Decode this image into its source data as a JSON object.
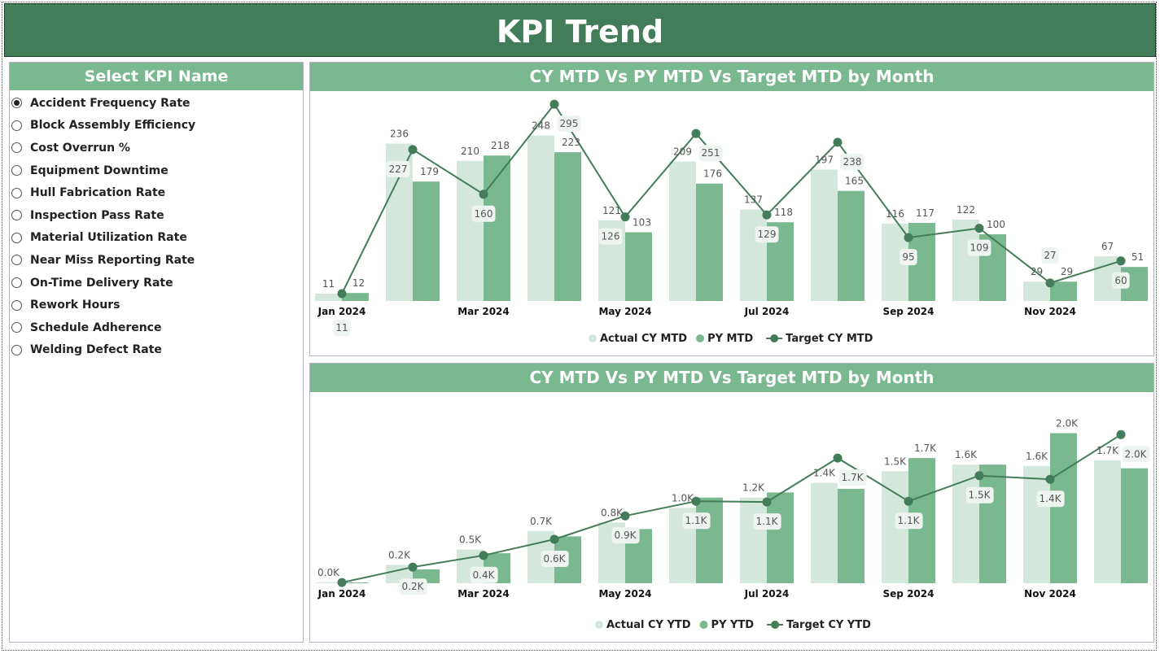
{
  "header": {
    "title": "KPI Trend"
  },
  "sidebar": {
    "title": "Select KPI Name",
    "selected": "Accident Frequency Rate",
    "items": [
      "Accident Frequency Rate",
      "Block Assembly Efficiency",
      "Cost Overrun %",
      "Equipment Downtime",
      "Hull Fabrication Rate",
      "Inspection Pass Rate",
      "Material Utilization Rate",
      "Near Miss Reporting Rate",
      "On-Time Delivery Rate",
      "Rework Hours",
      "Schedule Adherence",
      "Welding Defect Rate"
    ]
  },
  "colors": {
    "header": "#437c58",
    "panel_head": "#7ab890",
    "actual": "#d4e7dc",
    "py": "#7ab890",
    "target": "#437c58"
  },
  "chart_data": [
    {
      "type": "bar+line",
      "title": "CY MTD Vs PY MTD Vs Target MTD by Month",
      "categories": [
        "Jan 2024",
        "Feb 2024",
        "Mar 2024",
        "Apr 2024",
        "May 2024",
        "Jun 2024",
        "Jul 2024",
        "Aug 2024",
        "Sep 2024",
        "Oct 2024",
        "Nov 2024",
        "Dec 2024"
      ],
      "x_tick_labels": [
        "Jan 2024",
        "",
        "Mar 2024",
        "",
        "May 2024",
        "",
        "Jul 2024",
        "",
        "Sep 2024",
        "",
        "Nov 2024",
        ""
      ],
      "series": [
        {
          "name": "Actual CY MTD",
          "kind": "bar",
          "values": [
            11,
            236,
            210,
            248,
            121,
            209,
            137,
            197,
            116,
            122,
            29,
            67
          ]
        },
        {
          "name": "PY MTD",
          "kind": "bar",
          "values": [
            12,
            179,
            218,
            223,
            103,
            176,
            118,
            165,
            117,
            100,
            29,
            51
          ]
        },
        {
          "name": "Target CY MTD",
          "kind": "line",
          "values": [
            11,
            227,
            160,
            295,
            126,
            251,
            129,
            238,
            95,
            109,
            27,
            60
          ]
        }
      ],
      "ylim": [
        0,
        300
      ],
      "legend": "bottom-center",
      "grid": false
    },
    {
      "type": "bar+line",
      "title": "CY MTD Vs PY MTD Vs Target MTD by Month",
      "categories": [
        "Jan 2024",
        "Feb 2024",
        "Mar 2024",
        "Apr 2024",
        "May 2024",
        "Jun 2024",
        "Jul 2024",
        "Aug 2024",
        "Sep 2024",
        "Oct 2024",
        "Nov 2024",
        "Dec 2024"
      ],
      "x_tick_labels": [
        "Jan 2024",
        "",
        "Mar 2024",
        "",
        "May 2024",
        "",
        "Jul 2024",
        "",
        "Sep 2024",
        "",
        "Nov 2024",
        ""
      ],
      "unit": "K",
      "series": [
        {
          "name": "Actual CY YTD",
          "kind": "bar",
          "values": [
            0.01,
            0.25,
            0.46,
            0.71,
            0.83,
            1.03,
            1.17,
            1.37,
            1.53,
            1.62,
            1.6,
            1.68
          ],
          "labels": [
            "0.0K",
            "0.2K",
            "0.5K",
            "0.7K",
            "0.8K",
            "1.0K",
            "1.2K",
            "1.4K",
            "1.5K",
            "1.6K",
            "1.6K",
            "1.7K"
          ]
        },
        {
          "name": "PY YTD",
          "kind": "bar",
          "values": [
            0.01,
            0.19,
            0.41,
            0.64,
            0.74,
            1.17,
            1.24,
            1.29,
            1.71,
            1.62,
            2.05,
            1.57
          ],
          "labels": [
            null,
            null,
            null,
            null,
            null,
            null,
            null,
            null,
            "1.7K",
            null,
            "2.0K",
            null
          ]
        },
        {
          "name": "Target CY YTD",
          "kind": "line",
          "values": [
            0.01,
            0.22,
            0.38,
            0.6,
            0.92,
            1.12,
            1.11,
            1.71,
            1.12,
            1.47,
            1.42,
            2.03
          ],
          "labels": [
            null,
            "0.2K",
            "0.4K",
            "0.6K",
            "0.9K",
            "1.1K",
            "1.1K",
            "1.7K",
            "1.1K",
            "1.5K",
            "1.4K",
            "2.0K"
          ]
        }
      ],
      "ylim": [
        0,
        2.1
      ],
      "legend": "bottom-center",
      "grid": false
    }
  ]
}
